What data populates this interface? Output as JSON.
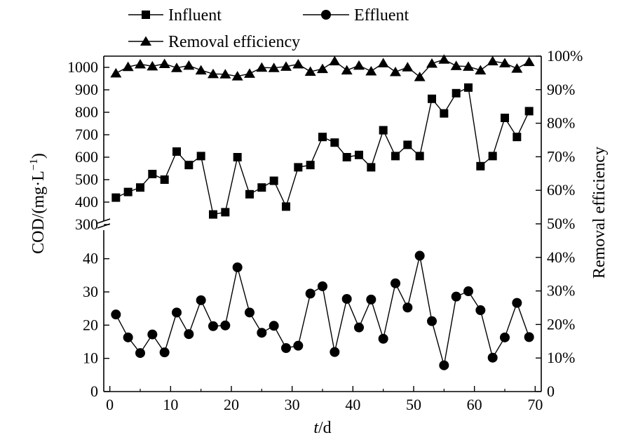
{
  "chart_data": {
    "type": "line",
    "title": "",
    "xlabel_italic": "t",
    "xlabel_rest": "/d",
    "ylabel_left": "COD/(mg·L",
    "ylabel_left_exp": "−1",
    "ylabel_left_close": ")",
    "ylabel_right": "Removal efficiency",
    "xlim": [
      -1,
      71
    ],
    "x_ticks": [
      "0",
      "10",
      "20",
      "30",
      "40",
      "50",
      "60",
      "70"
    ],
    "x_tick_values": [
      0,
      10,
      20,
      30,
      40,
      50,
      60,
      70
    ],
    "y_upper_range": [
      300,
      1050
    ],
    "y_upper_ticks": [
      "300",
      "400",
      "500",
      "600",
      "700",
      "800",
      "900",
      "1000"
    ],
    "y_upper_tick_values": [
      300,
      400,
      500,
      600,
      700,
      800,
      900,
      1000
    ],
    "y_lower_range": [
      0,
      45
    ],
    "y_lower_ticks": [
      "0",
      "10",
      "20",
      "30",
      "40"
    ],
    "y_lower_tick_values": [
      0,
      10,
      20,
      30,
      40
    ],
    "y_right_range": [
      0,
      100
    ],
    "y_right_ticks": [
      "0",
      "10%",
      "20%",
      "30%",
      "40%",
      "50%",
      "60%",
      "70%",
      "80%",
      "90%",
      "100%"
    ],
    "y_right_tick_values": [
      0,
      10,
      20,
      30,
      40,
      50,
      60,
      70,
      80,
      90,
      100
    ],
    "legend": {
      "influent": "Influent",
      "effluent": "Effluent",
      "removal": "Removal efficiency",
      "placement": "top"
    },
    "x": [
      1,
      3,
      5,
      7,
      9,
      11,
      13,
      15,
      17,
      19,
      21,
      23,
      25,
      27,
      29,
      31,
      33,
      35,
      37,
      39,
      41,
      43,
      45,
      47,
      49,
      51,
      53,
      55,
      57,
      59,
      61,
      63,
      65,
      67,
      69
    ],
    "series": [
      {
        "name": "Influent",
        "axis": "left-upper",
        "marker": "square",
        "values": [
          420,
          445,
          465,
          525,
          500,
          625,
          565,
          605,
          345,
          355,
          600,
          435,
          465,
          495,
          380,
          555,
          565,
          690,
          665,
          600,
          610,
          555,
          720,
          605,
          655,
          605,
          860,
          795,
          885,
          910,
          560,
          605,
          775,
          690,
          805
        ]
      },
      {
        "name": "Effluent",
        "axis": "left-lower",
        "marker": "circle",
        "values": [
          23.2,
          16.3,
          11.6,
          17.2,
          11.8,
          23.8,
          17.3,
          27.5,
          19.7,
          19.9,
          37.4,
          23.8,
          17.7,
          19.8,
          13.1,
          13.8,
          29.5,
          31.7,
          11.9,
          27.9,
          19.3,
          27.7,
          15.9,
          32.6,
          25.3,
          40.9,
          21.2,
          7.9,
          28.6,
          30.2,
          24.5,
          10.2,
          16.3,
          26.7,
          16.4
        ]
      },
      {
        "name": "Removal efficiency",
        "axis": "right",
        "marker": "triangle",
        "values": [
          94.9,
          96.8,
          97.6,
          97.0,
          97.7,
          96.5,
          97.2,
          95.8,
          94.7,
          94.6,
          94.0,
          94.8,
          96.6,
          96.5,
          96.9,
          97.6,
          95.4,
          96.2,
          98.5,
          95.8,
          97.2,
          95.5,
          97.9,
          95.3,
          96.7,
          93.8,
          97.8,
          99.0,
          97.1,
          96.9,
          95.8,
          98.5,
          97.9,
          96.3,
          98.3
        ]
      }
    ]
  }
}
